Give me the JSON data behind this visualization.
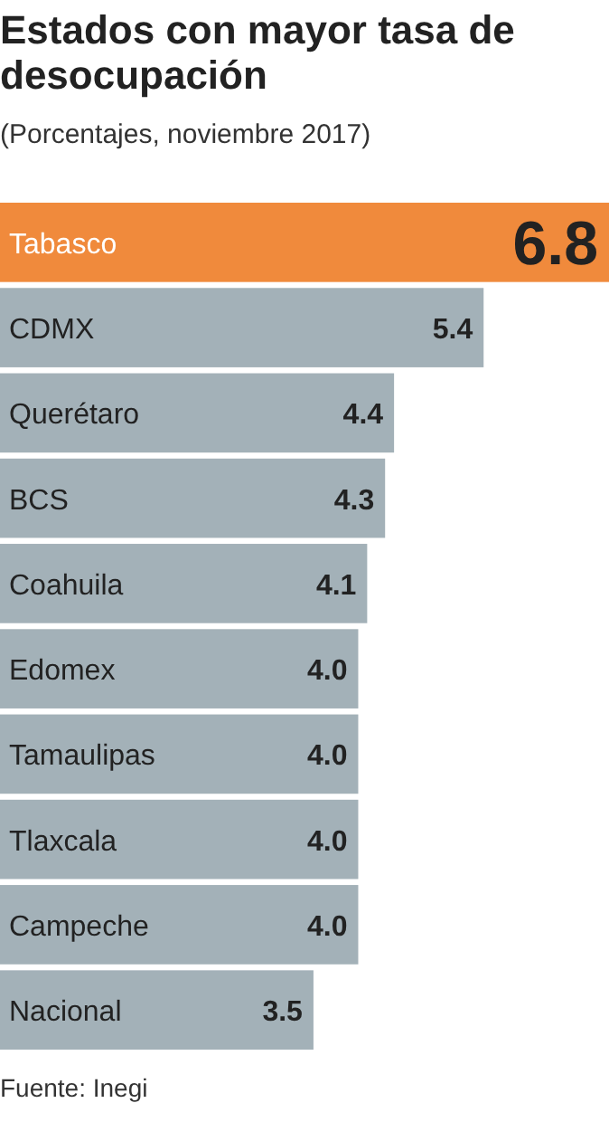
{
  "chart_data": {
    "type": "bar",
    "orientation": "horizontal",
    "title": "Estados con mayor tasa de desocupación",
    "subtitle": "(Porcentajes, noviembre 2017)",
    "categories": [
      "Tabasco",
      "CDMX",
      "Querétaro",
      "BCS",
      "Coahuila",
      "Edomex",
      "Tamaulipas",
      "Tlaxcala",
      "Campeche",
      "Nacional"
    ],
    "values": [
      6.8,
      5.4,
      4.4,
      4.3,
      4.1,
      4.0,
      4.0,
      4.0,
      4.0,
      3.5
    ],
    "value_labels": [
      "6.8",
      "5.4",
      "4.4",
      "4.3",
      "4.1",
      "4.0",
      "4.0",
      "4.0",
      "4.0",
      "3.5"
    ],
    "colors": [
      "#f08a3c",
      "#a3b1b8",
      "#a3b1b8",
      "#a3b1b8",
      "#a3b1b8",
      "#a3b1b8",
      "#a3b1b8",
      "#a3b1b8",
      "#a3b1b8",
      "#a3b1b8"
    ],
    "annotations": [
      "Fuente: Inegi"
    ]
  }
}
